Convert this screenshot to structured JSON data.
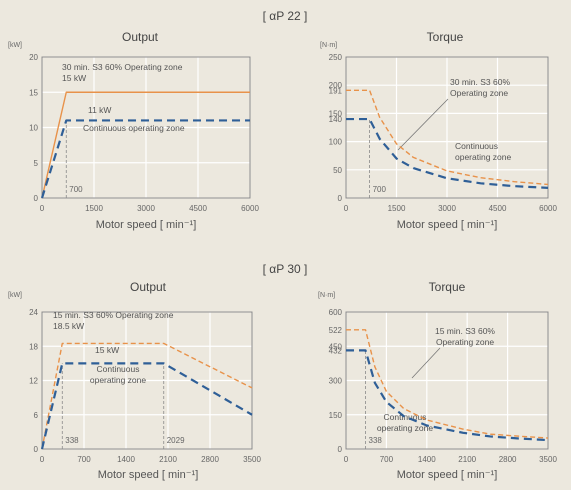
{
  "sections": [
    {
      "title": "[ αP 22 ]"
    },
    {
      "title": "[ αP 30 ]"
    }
  ],
  "colors": {
    "s3": "#e8924a",
    "cont": "#2f5f97",
    "grid": "#ffffff",
    "frame": "#7e7e7e"
  },
  "chart_data": [
    {
      "type": "line",
      "title": "Output",
      "unit": "[kW]",
      "xlabel": "Motor speed [ min⁻¹]",
      "xlim": [
        0,
        6000
      ],
      "ylim": [
        0,
        20
      ],
      "xticks": [
        "0",
        "1500",
        "3000",
        "4500",
        "6000"
      ],
      "yticks": [
        "0",
        "5",
        "10",
        "15",
        "20"
      ],
      "series": [
        {
          "x": [
            0,
            700,
            6000
          ],
          "y": [
            0,
            15,
            15
          ],
          "dash": false,
          "color": "#e8924a"
        },
        {
          "x": [
            0,
            700,
            6000
          ],
          "y": [
            0,
            11,
            11
          ],
          "dash": true,
          "color": "#2f5f97"
        }
      ],
      "marker": {
        "x": 700,
        "label": "700"
      },
      "annotations": {
        "s3_line1": "30 min. S3 60% Operating zone",
        "s3_line2": "15 kW",
        "cont_value": "11 kW",
        "cont_zone": "Continuous operating zone"
      }
    },
    {
      "type": "line",
      "title": "Torque",
      "unit": "[N·m]",
      "xlabel": "Motor speed [ min⁻¹]",
      "xlim": [
        0,
        6000
      ],
      "ylim": [
        0,
        250
      ],
      "xticks": [
        "0",
        "1500",
        "3000",
        "4500",
        "6000"
      ],
      "yticks": [
        "0",
        "50",
        "100",
        "150",
        "200",
        "250"
      ],
      "value_labels": [
        "140",
        "191"
      ],
      "series": [
        {
          "x": [
            0,
            700,
            1000,
            1500,
            2000,
            3000,
            4000,
            5000,
            6000
          ],
          "y": [
            191,
            191,
            143,
            96,
            72,
            48,
            36,
            29,
            24
          ],
          "dash": true,
          "color": "#e8924a"
        },
        {
          "x": [
            0,
            700,
            1000,
            1500,
            2000,
            3000,
            4000,
            5000,
            6000
          ],
          "y": [
            140,
            140,
            105,
            70,
            53,
            35,
            26,
            21,
            18
          ],
          "dash": true,
          "color": "#2f5f97"
        }
      ],
      "marker": {
        "x": 700,
        "label": "700"
      },
      "annotations": {
        "s3_line1": "30 min. S3 60%",
        "s3_line2": "Operating zone",
        "cont_line1": "Continuous",
        "cont_line2": "operating zone"
      }
    },
    {
      "type": "line",
      "title": "Output",
      "unit": "[kW]",
      "xlabel": "Motor speed [ min⁻¹]",
      "xlim": [
        0,
        3500
      ],
      "ylim": [
        0,
        24
      ],
      "xticks": [
        "0",
        "700",
        "1400",
        "2100",
        "2800",
        "3500"
      ],
      "yticks": [
        "0",
        "6",
        "12",
        "18",
        "24"
      ],
      "series": [
        {
          "x": [
            0,
            338,
            2029,
            3500
          ],
          "y": [
            0,
            18.5,
            18.5,
            10.7
          ],
          "dash": true,
          "color": "#e8924a"
        },
        {
          "x": [
            0,
            338,
            2029,
            3500
          ],
          "y": [
            0,
            15,
            15,
            6
          ],
          "dash": true,
          "color": "#2f5f97"
        }
      ],
      "markers": [
        {
          "x": 338,
          "label": "338"
        },
        {
          "x": 2029,
          "label": "2029"
        }
      ],
      "annotations": {
        "s3_line1": "15 min. S3 60% Operating zone",
        "s3_line2": "18.5 kW",
        "cont_value": "15 kW",
        "cont_line1": "Continuous",
        "cont_line2": "operating zone"
      }
    },
    {
      "type": "line",
      "title": "Torque",
      "unit": "[N·m]",
      "xlabel": "Motor speed [ min⁻¹]",
      "xlim": [
        0,
        3500
      ],
      "ylim": [
        0,
        600
      ],
      "xticks": [
        "0",
        "700",
        "1400",
        "2100",
        "2800",
        "3500"
      ],
      "yticks": [
        "0",
        "150",
        "300",
        "450",
        "600"
      ],
      "value_labels": [
        "432",
        "522"
      ],
      "series": [
        {
          "x": [
            0,
            338,
            500,
            700,
            1000,
            1400,
            2029,
            2500,
            3000,
            3500
          ],
          "y": [
            522,
            522,
            360,
            252,
            177,
            127,
            87,
            65,
            56,
            48
          ],
          "dash": true,
          "color": "#e8924a"
        },
        {
          "x": [
            0,
            338,
            500,
            700,
            1000,
            1400,
            2029,
            2500,
            3000,
            3500
          ],
          "y": [
            432,
            432,
            290,
            206,
            144,
            103,
            71,
            55,
            46,
            39
          ],
          "dash": true,
          "color": "#2f5f97"
        }
      ],
      "marker": {
        "x": 338,
        "label": "338"
      },
      "annotations": {
        "s3_line1": "15 min. S3 60%",
        "s3_line2": "Operating zone",
        "cont_line1": "Continuous",
        "cont_line2": "operating zone"
      }
    }
  ]
}
